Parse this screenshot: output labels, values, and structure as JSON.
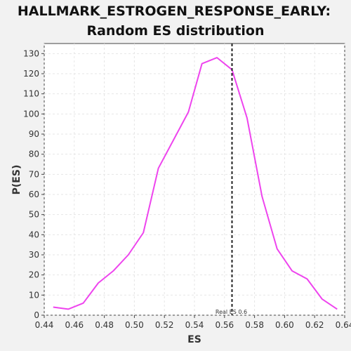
{
  "chart_data": {
    "type": "line",
    "title_lines": [
      "HALLMARK_ESTROGEN_RESPONSE_EARLY:",
      "Random ES distribution"
    ],
    "xlabel": "ES",
    "ylabel": "P(ES)",
    "xlim": [
      0.44,
      0.64
    ],
    "ylim": [
      0,
      135
    ],
    "x_ticks": [
      "0.44",
      "0.46",
      "0.48",
      "0.50",
      "0.52",
      "0.54",
      "0.56",
      "0.58",
      "0.60",
      "0.62",
      "0.64"
    ],
    "y_ticks": [
      "0",
      "10",
      "20",
      "30",
      "40",
      "50",
      "60",
      "70",
      "80",
      "90",
      "100",
      "110",
      "120",
      "130"
    ],
    "grid": true,
    "series": [
      {
        "color": "#ee44ee",
        "x": [
          0.446,
          0.456,
          0.466,
          0.476,
          0.486,
          0.496,
          0.506,
          0.516,
          0.526,
          0.536,
          0.545,
          0.555,
          0.565,
          0.575,
          0.585,
          0.595,
          0.605,
          0.615,
          0.625,
          0.635
        ],
        "y": [
          4,
          3,
          6,
          16,
          22,
          30,
          41,
          73,
          87,
          101,
          125,
          128,
          122,
          98,
          59,
          33,
          22,
          18,
          8,
          3
        ]
      }
    ],
    "annotations": [
      {
        "type": "vline",
        "x": 0.565,
        "style": "dashed",
        "color": "#222222",
        "label": "Real ES 0.6"
      }
    ]
  }
}
